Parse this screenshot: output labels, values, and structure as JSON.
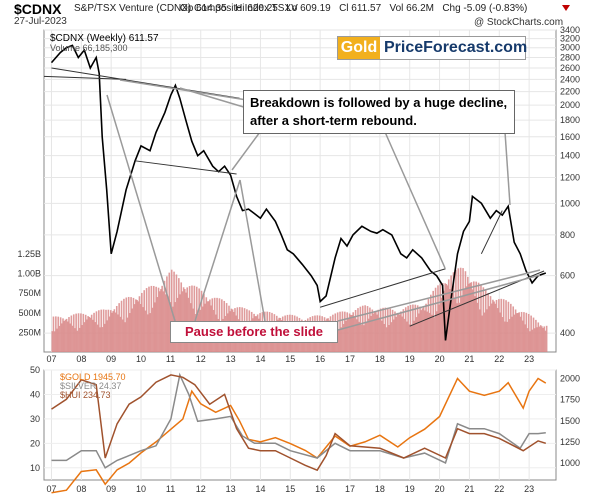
{
  "header": {
    "ticker": "$CDNX",
    "index_name": "S&P/TSX Venture (CDNX) Composite Index  TSXV",
    "date": "27-Jul-2023",
    "op": "Op 614.35",
    "hi": "Hi 620.25",
    "lo": "Lo 609.19",
    "cl": "Cl 611.57",
    "vol": "Vol 66.2M",
    "chg": "Chg -5.09 (-0.83%)",
    "credit": "@ StockCharts.com",
    "arrow_icon": "down-triangle-icon"
  },
  "logo": {
    "gold": "Gold",
    "rest": "PriceForecast.com"
  },
  "annotations": {
    "breakdown": "Breakdown is followed by a huge decline, after a short-term rebound.",
    "pause": "Pause before the slide"
  },
  "colors": {
    "cdnx_line": "#000000",
    "down_bar": "#c0103a",
    "volume": "#d98a8a",
    "gold": "#e87511",
    "silver": "#8a8a8a",
    "hui": "#a0522d"
  },
  "chart_data": [
    {
      "type": "line",
      "title": "$CDNX (Weekly) 611.57",
      "ylim": [
        350,
        3400
      ],
      "log_scale": true,
      "y_ticks": [
        3400,
        3200,
        3000,
        2800,
        2600,
        2400,
        2200,
        2000,
        1800,
        1600,
        1400,
        1200,
        1000,
        800,
        600,
        400
      ],
      "x_ticks": [
        "07",
        "08",
        "09",
        "10",
        "11",
        "12",
        "13",
        "14",
        "15",
        "16",
        "17",
        "18",
        "19",
        "20",
        "21",
        "22",
        "23"
      ],
      "series": [
        {
          "name": "$CDNX (Weekly) 611.57",
          "x": [
            2007.0,
            2007.3,
            2007.5,
            2007.7,
            2007.9,
            2008.1,
            2008.3,
            2008.5,
            2008.6,
            2008.7,
            2008.85,
            2009.0,
            2009.2,
            2009.5,
            2009.8,
            2010.0,
            2010.3,
            2010.5,
            2010.8,
            2011.0,
            2011.15,
            2011.3,
            2011.5,
            2011.7,
            2011.9,
            2012.1,
            2012.4,
            2012.6,
            2012.8,
            2013.0,
            2013.2,
            2013.4,
            2013.6,
            2013.8,
            2014.0,
            2014.2,
            2014.5,
            2014.7,
            2014.9,
            2015.1,
            2015.4,
            2015.7,
            2015.9,
            2016.0,
            2016.2,
            2016.5,
            2016.7,
            2016.9,
            2017.1,
            2017.4,
            2017.7,
            2017.9,
            2018.1,
            2018.4,
            2018.7,
            2018.9,
            2019.1,
            2019.4,
            2019.7,
            2019.9,
            2020.1,
            2020.2,
            2020.4,
            2020.6,
            2020.8,
            2021.0,
            2021.1,
            2021.4,
            2021.7,
            2021.9,
            2022.1,
            2022.3,
            2022.5,
            2022.7,
            2022.9,
            2023.1,
            2023.3,
            2023.56
          ],
          "values": [
            2700,
            2900,
            3000,
            3050,
            2800,
            2950,
            2600,
            2800,
            2500,
            1600,
            1100,
            700,
            820,
            1100,
            1350,
            1500,
            1450,
            1650,
            1900,
            2150,
            2300,
            2100,
            1800,
            1550,
            1400,
            1450,
            1300,
            1250,
            1300,
            1220,
            1050,
            950,
            960,
            930,
            900,
            960,
            880,
            800,
            720,
            700,
            650,
            600,
            560,
            500,
            520,
            680,
            780,
            740,
            800,
            850,
            820,
            810,
            830,
            800,
            700,
            680,
            720,
            680,
            620,
            600,
            560,
            380,
            520,
            700,
            820,
            880,
            1050,
            1000,
            900,
            950,
            920,
            980,
            760,
            700,
            620,
            570,
            600,
            611.57
          ]
        }
      ],
      "volume": {
        "ylim": [
          0,
          1500000000
        ],
        "y_ticks": [
          "1.25B",
          "1.00B",
          "750M",
          "500M",
          "250M"
        ],
        "label": "Volume 66,185,300",
        "x": [
          2007.0,
          2008.0,
          2008.8,
          2009.5,
          2010.5,
          2011.0,
          2011.5,
          2012.5,
          2013.5,
          2014.5,
          2015.5,
          2016.5,
          2017.5,
          2018.5,
          2019.5,
          2020.2,
          2020.8,
          2021.5,
          2022.5,
          2023.5
        ],
        "values": [
          450,
          500,
          550,
          700,
          880,
          1050,
          900,
          700,
          550,
          500,
          450,
          500,
          600,
          550,
          650,
          1000,
          1100,
          800,
          600,
          350
        ]
      }
    },
    {
      "type": "line",
      "ylim_left": [
        5,
        50
      ],
      "y_ticks_left": [
        50,
        40,
        30,
        20,
        10
      ],
      "ylim_right": [
        800,
        2100
      ],
      "y_ticks_right": [
        2000,
        1750,
        1500,
        1250,
        1000
      ],
      "x_ticks": [
        "07",
        "08",
        "09",
        "10",
        "11",
        "12",
        "13",
        "14",
        "15",
        "16",
        "17",
        "18",
        "19",
        "20",
        "21",
        "22",
        "23"
      ],
      "series": [
        {
          "name": "$GOLD 1945.70",
          "axis": "right",
          "x": [
            2007.0,
            2007.5,
            2008.0,
            2008.5,
            2008.8,
            2009.2,
            2009.6,
            2010.0,
            2010.5,
            2011.0,
            2011.4,
            2011.7,
            2012.0,
            2012.5,
            2013.0,
            2013.3,
            2013.6,
            2014.0,
            2014.5,
            2015.0,
            2015.5,
            2015.9,
            2016.5,
            2017.0,
            2017.5,
            2018.0,
            2018.6,
            2019.0,
            2019.5,
            2020.0,
            2020.6,
            2021.0,
            2021.5,
            2022.0,
            2022.3,
            2022.8,
            2023.0,
            2023.3,
            2023.56
          ],
          "values": [
            650,
            680,
            900,
            920,
            750,
            920,
            1000,
            1120,
            1250,
            1400,
            1520,
            1850,
            1700,
            1600,
            1680,
            1500,
            1280,
            1250,
            1300,
            1230,
            1150,
            1060,
            1320,
            1200,
            1250,
            1330,
            1190,
            1300,
            1400,
            1550,
            2000,
            1850,
            1800,
            1850,
            1950,
            1650,
            1850,
            2000,
            1945.7
          ]
        },
        {
          "name": "$SILVER 24.37",
          "axis": "left",
          "x": [
            2007.0,
            2007.5,
            2008.0,
            2008.5,
            2008.8,
            2009.2,
            2009.6,
            2010.0,
            2010.5,
            2011.0,
            2011.3,
            2011.6,
            2011.9,
            2012.5,
            2013.0,
            2013.4,
            2013.8,
            2014.5,
            2015.0,
            2015.9,
            2016.5,
            2017.0,
            2018.0,
            2018.8,
            2019.5,
            2020.2,
            2020.6,
            2021.0,
            2021.5,
            2022.0,
            2022.7,
            2023.0,
            2023.3,
            2023.56
          ],
          "values": [
            13,
            13,
            17,
            17,
            10,
            13,
            15,
            17,
            19,
            30,
            48,
            40,
            29,
            30,
            31,
            23,
            20,
            20,
            17,
            14,
            20,
            17,
            17,
            14,
            16,
            12,
            28,
            26,
            26,
            24,
            18,
            24,
            24,
            24.37
          ]
        },
        {
          "name": "$HUI 234.73",
          "axis": "left",
          "x": [
            2007.0,
            2007.5,
            2008.0,
            2008.5,
            2008.8,
            2009.2,
            2009.6,
            2010.0,
            2010.5,
            2011.0,
            2011.4,
            2011.8,
            2012.3,
            2012.8,
            2013.2,
            2013.6,
            2014.0,
            2014.5,
            2015.0,
            2015.5,
            2015.9,
            2016.2,
            2016.5,
            2017.0,
            2018.0,
            2018.8,
            2019.5,
            2020.2,
            2020.6,
            2021.0,
            2021.5,
            2022.0,
            2022.8,
            2023.3,
            2023.56
          ],
          "values": [
            34,
            38,
            46,
            44,
            14,
            28,
            36,
            39,
            45,
            48,
            47,
            44,
            36,
            40,
            26,
            18,
            17,
            17,
            14,
            11,
            9,
            15,
            24,
            19,
            18,
            14,
            18,
            14,
            26,
            24,
            24,
            22,
            17,
            21,
            20
          ]
        }
      ]
    }
  ]
}
